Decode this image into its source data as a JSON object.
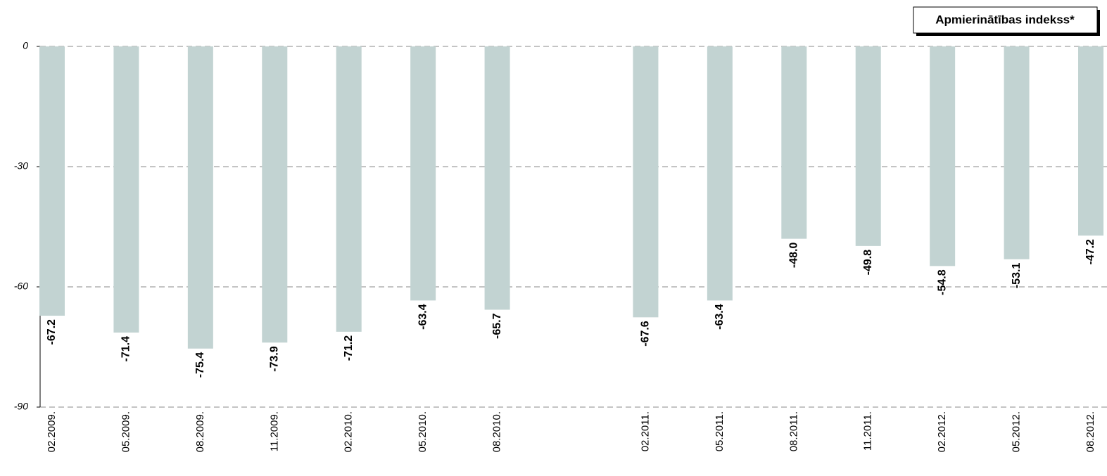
{
  "chart_data": {
    "type": "bar",
    "categories": [
      "02.2009.",
      "05.2009.",
      "08.2009.",
      "11.2009.",
      "02.2010.",
      "05.2010.",
      "08.2010.",
      null,
      "02.2011.",
      "05.2011.",
      "08.2011.",
      "11.2011.",
      "02.2012.",
      "05.2012.",
      "08.2012."
    ],
    "series": [
      {
        "name": "Apmierinātības indekss*",
        "color": "#c2d3d2",
        "values": [
          -67.2,
          -71.4,
          -75.4,
          -73.9,
          -71.2,
          -63.4,
          -65.7,
          null,
          -67.6,
          -63.4,
          -48.0,
          -49.8,
          -54.8,
          -53.1,
          -47.2
        ],
        "value_labels": [
          "-67.2",
          "-71.4",
          "-75.4",
          "-73.9",
          "-71.2",
          "-63.4",
          "-65.7",
          null,
          "-67.6",
          "-63.4",
          "-48.0",
          "-49.8",
          "-54.8",
          "-53.1",
          "-47.2"
        ]
      }
    ],
    "ylim": [
      -90,
      0
    ],
    "yticks": [
      0,
      -30,
      -60,
      -90
    ],
    "grid": true,
    "legend": "top-right"
  }
}
